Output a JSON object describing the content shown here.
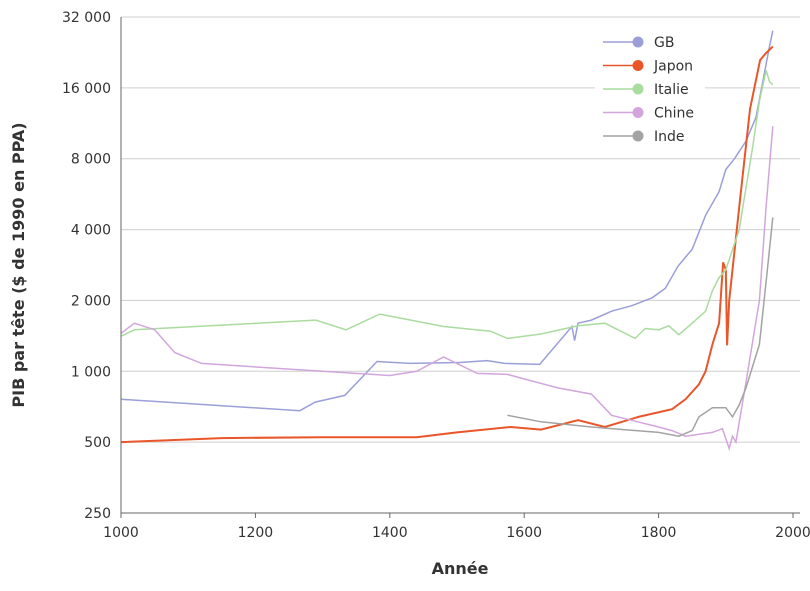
{
  "chart_data": {
    "type": "line",
    "title": "",
    "xlabel": "Année",
    "ylabel": "PIB par tête ($ de 1990 en PPA)",
    "xlim": [
      1000,
      2000
    ],
    "ylim": [
      250,
      32000
    ],
    "yscale": "log2",
    "x_ticks": [
      "1000",
      "1200",
      "1400",
      "1600",
      "1800",
      "2000"
    ],
    "x_tick_values": [
      1000,
      1200,
      1400,
      1600,
      1800,
      2000
    ],
    "y_ticks": [
      "250",
      "500",
      "1 000",
      "2 000",
      "4 000",
      "8 000",
      "16 000",
      "32 000"
    ],
    "y_tick_values": [
      250,
      500,
      1000,
      2000,
      4000,
      8000,
      16000,
      32000
    ],
    "grid": "horizontal",
    "legend_position": "top-right",
    "series": [
      {
        "name": "GB",
        "color": "#9a9fd8",
        "points": [
          [
            1000,
            760
          ],
          [
            1266,
            680
          ],
          [
            1289,
            740
          ],
          [
            1333,
            790
          ],
          [
            1381,
            1100
          ],
          [
            1430,
            1080
          ],
          [
            1504,
            1090
          ],
          [
            1545,
            1110
          ],
          [
            1571,
            1080
          ],
          [
            1623,
            1070
          ],
          [
            1671,
            1550
          ],
          [
            1675,
            1350
          ],
          [
            1680,
            1600
          ],
          [
            1700,
            1650
          ],
          [
            1730,
            1800
          ],
          [
            1760,
            1900
          ],
          [
            1790,
            2050
          ],
          [
            1810,
            2250
          ],
          [
            1829,
            2800
          ],
          [
            1850,
            3300
          ],
          [
            1870,
            4600
          ],
          [
            1890,
            5800
          ],
          [
            1900,
            7200
          ],
          [
            1913,
            8000
          ],
          [
            1930,
            9500
          ],
          [
            1945,
            12000
          ],
          [
            1955,
            17000
          ],
          [
            1965,
            24000
          ],
          [
            1970,
            28000
          ]
        ]
      },
      {
        "name": "Japon",
        "color": "#e8562a",
        "points": [
          [
            1000,
            500
          ],
          [
            1150,
            520
          ],
          [
            1300,
            525
          ],
          [
            1440,
            525
          ],
          [
            1500,
            550
          ],
          [
            1580,
            580
          ],
          [
            1625,
            565
          ],
          [
            1680,
            620
          ],
          [
            1720,
            580
          ],
          [
            1770,
            640
          ],
          [
            1820,
            690
          ],
          [
            1840,
            760
          ],
          [
            1860,
            880
          ],
          [
            1870,
            1000
          ],
          [
            1880,
            1300
          ],
          [
            1890,
            1600
          ],
          [
            1896,
            2900
          ],
          [
            1900,
            2700
          ],
          [
            1902,
            1290
          ],
          [
            1905,
            2000
          ],
          [
            1921,
            5300
          ],
          [
            1936,
            13000
          ],
          [
            1951,
            21000
          ],
          [
            1960,
            22500
          ],
          [
            1970,
            24000
          ]
        ]
      },
      {
        "name": "Italie",
        "color": "#a9dc9e",
        "points": [
          [
            1000,
            1410
          ],
          [
            1020,
            1500
          ],
          [
            1290,
            1650
          ],
          [
            1335,
            1500
          ],
          [
            1385,
            1750
          ],
          [
            1480,
            1550
          ],
          [
            1550,
            1480
          ],
          [
            1575,
            1380
          ],
          [
            1625,
            1440
          ],
          [
            1680,
            1560
          ],
          [
            1720,
            1600
          ],
          [
            1765,
            1380
          ],
          [
            1780,
            1520
          ],
          [
            1800,
            1500
          ],
          [
            1815,
            1560
          ],
          [
            1830,
            1430
          ],
          [
            1850,
            1600
          ],
          [
            1870,
            1800
          ],
          [
            1880,
            2200
          ],
          [
            1890,
            2500
          ],
          [
            1900,
            2700
          ],
          [
            1920,
            4000
          ],
          [
            1940,
            9000
          ],
          [
            1950,
            14000
          ],
          [
            1960,
            19000
          ],
          [
            1965,
            17000
          ],
          [
            1970,
            16500
          ]
        ]
      },
      {
        "name": "Chine",
        "color": "#d2a6dc",
        "points": [
          [
            1000,
            1450
          ],
          [
            1020,
            1600
          ],
          [
            1050,
            1500
          ],
          [
            1080,
            1200
          ],
          [
            1120,
            1080
          ],
          [
            1300,
            1000
          ],
          [
            1400,
            960
          ],
          [
            1440,
            1000
          ],
          [
            1480,
            1150
          ],
          [
            1530,
            980
          ],
          [
            1575,
            970
          ],
          [
            1650,
            850
          ],
          [
            1700,
            800
          ],
          [
            1730,
            650
          ],
          [
            1800,
            580
          ],
          [
            1820,
            560
          ],
          [
            1840,
            530
          ],
          [
            1880,
            550
          ],
          [
            1895,
            570
          ],
          [
            1905,
            470
          ],
          [
            1910,
            530
          ],
          [
            1915,
            500
          ],
          [
            1930,
            900
          ],
          [
            1950,
            2000
          ],
          [
            1960,
            5000
          ],
          [
            1970,
            11000
          ]
        ]
      },
      {
        "name": "Inde",
        "color": "#a3a3a3",
        "points": [
          [
            1575,
            650
          ],
          [
            1625,
            610
          ],
          [
            1700,
            580
          ],
          [
            1800,
            550
          ],
          [
            1830,
            530
          ],
          [
            1850,
            560
          ],
          [
            1860,
            640
          ],
          [
            1880,
            700
          ],
          [
            1900,
            700
          ],
          [
            1910,
            640
          ],
          [
            1920,
            720
          ],
          [
            1930,
            850
          ],
          [
            1950,
            1300
          ],
          [
            1960,
            2400
          ],
          [
            1970,
            4500
          ]
        ]
      }
    ]
  }
}
